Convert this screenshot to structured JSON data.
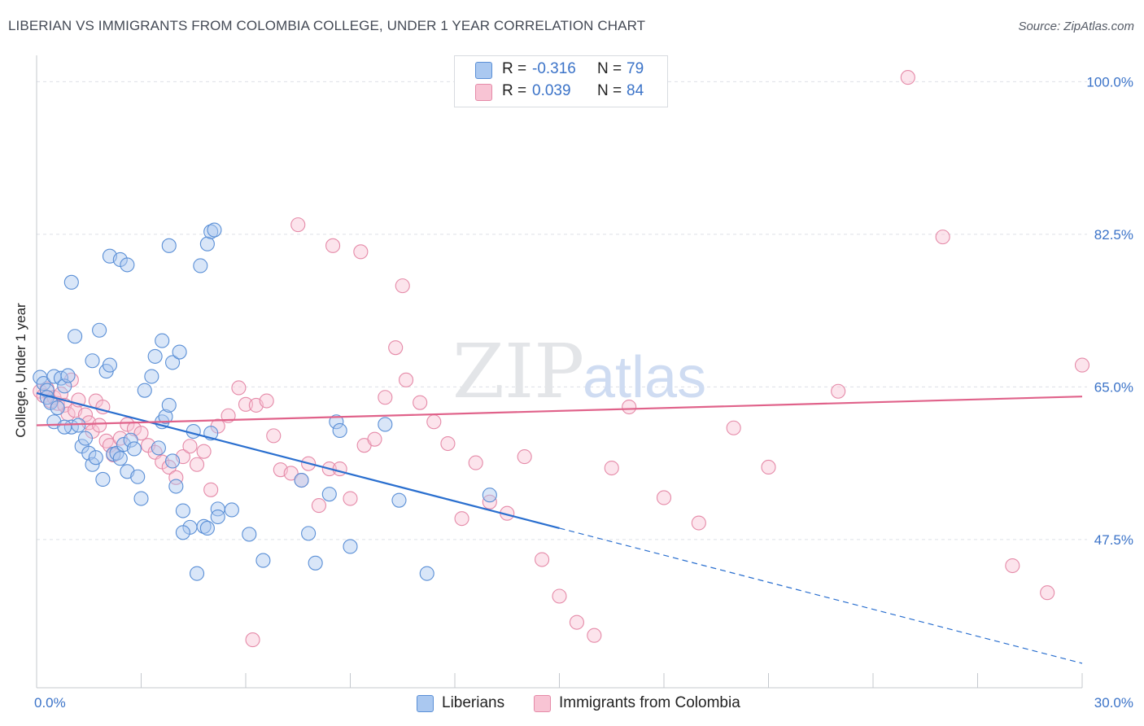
{
  "header": {
    "title": "LIBERIAN VS IMMIGRANTS FROM COLOMBIA COLLEGE, UNDER 1 YEAR CORRELATION CHART",
    "source": "Source: ZipAtlas.com"
  },
  "watermark": {
    "zip": "ZIP",
    "atlas": "atlas"
  },
  "colors": {
    "blue_fill": "#aac8f0",
    "blue_stroke": "#5a8fd6",
    "blue_line": "#2a6fcf",
    "pink_fill": "#f8c4d4",
    "pink_stroke": "#e58aa8",
    "pink_line": "#e0628a",
    "axis_text": "#3b73c8",
    "grid": "#dde0e6"
  },
  "legend_top": {
    "rows": [
      {
        "r_label": "R =",
        "r_value": "-0.316",
        "n_label": "N =",
        "n_value": "79"
      },
      {
        "r_label": "R =",
        "r_value": "0.039",
        "n_label": "N =",
        "n_value": "84"
      }
    ]
  },
  "legend_bottom": {
    "items": [
      {
        "label": "Liberians"
      },
      {
        "label": "Immigrants from Colombia"
      }
    ]
  },
  "chart_data": {
    "type": "scatter",
    "title": "LIBERIAN VS IMMIGRANTS FROM COLOMBIA COLLEGE, UNDER 1 YEAR CORRELATION CHART",
    "xlabel": "",
    "ylabel": "College, Under 1 year",
    "xlim": [
      0,
      30
    ],
    "ylim": [
      30.5,
      102
    ],
    "x_tick_labels": [
      "0.0%",
      "30.0%"
    ],
    "y_ticks": [
      47.5,
      65.0,
      82.5,
      100.0
    ],
    "y_tick_labels": [
      "47.5%",
      "65.0%",
      "82.5%",
      "100.0%"
    ],
    "grid": true,
    "series": [
      {
        "name": "Liberians",
        "color": "blue",
        "R": -0.316,
        "N": 79,
        "trend": {
          "x0": 0.0,
          "y0": 64.3,
          "x1": 15.0,
          "y1": 48.8,
          "dash_to_x": 30.0,
          "dash_to_y": 33.3
        },
        "points": [
          [
            0.1,
            66.1
          ],
          [
            0.2,
            65.4
          ],
          [
            0.3,
            64.6
          ],
          [
            0.3,
            63.8
          ],
          [
            0.4,
            63.2
          ],
          [
            0.5,
            66.2
          ],
          [
            0.6,
            62.6
          ],
          [
            0.7,
            66.0
          ],
          [
            0.8,
            65.1
          ],
          [
            0.9,
            66.3
          ],
          [
            1.0,
            60.4
          ],
          [
            1.1,
            70.8
          ],
          [
            1.2,
            60.6
          ],
          [
            1.3,
            58.2
          ],
          [
            1.4,
            59.1
          ],
          [
            1.5,
            57.4
          ],
          [
            1.6,
            56.1
          ],
          [
            1.7,
            56.9
          ],
          [
            1.8,
            71.5
          ],
          [
            1.9,
            54.4
          ],
          [
            2.0,
            66.8
          ],
          [
            2.1,
            67.5
          ],
          [
            2.2,
            57.3
          ],
          [
            2.3,
            57.4
          ],
          [
            2.4,
            56.8
          ],
          [
            2.5,
            58.4
          ],
          [
            2.6,
            55.3
          ],
          [
            2.7,
            58.9
          ],
          [
            2.8,
            57.9
          ],
          [
            2.9,
            54.7
          ],
          [
            3.0,
            52.2
          ],
          [
            3.1,
            64.6
          ],
          [
            3.3,
            66.2
          ],
          [
            3.4,
            68.5
          ],
          [
            3.5,
            58.0
          ],
          [
            3.6,
            61.0
          ],
          [
            3.7,
            61.6
          ],
          [
            3.8,
            62.9
          ],
          [
            3.9,
            56.5
          ],
          [
            4.0,
            53.6
          ],
          [
            4.2,
            50.8
          ],
          [
            4.4,
            48.9
          ],
          [
            4.6,
            43.6
          ],
          [
            4.8,
            49.0
          ],
          [
            5.0,
            59.7
          ],
          [
            5.2,
            51.0
          ],
          [
            0.5,
            61.0
          ],
          [
            0.8,
            60.4
          ],
          [
            1.0,
            77.0
          ],
          [
            1.6,
            68.0
          ],
          [
            2.1,
            80.0
          ],
          [
            2.4,
            79.6
          ],
          [
            2.6,
            79.0
          ],
          [
            3.8,
            81.2
          ],
          [
            4.7,
            78.9
          ],
          [
            4.9,
            81.4
          ],
          [
            5.0,
            82.8
          ],
          [
            5.1,
            83.0
          ],
          [
            3.6,
            70.3
          ],
          [
            3.9,
            67.8
          ],
          [
            4.1,
            69.0
          ],
          [
            4.5,
            59.9
          ],
          [
            4.9,
            48.8
          ],
          [
            5.2,
            50.1
          ],
          [
            5.6,
            50.9
          ],
          [
            6.1,
            48.1
          ],
          [
            6.5,
            45.1
          ],
          [
            7.6,
            54.3
          ],
          [
            7.8,
            48.2
          ],
          [
            8.0,
            44.8
          ],
          [
            8.4,
            52.7
          ],
          [
            8.6,
            61.0
          ],
          [
            8.7,
            60.0
          ],
          [
            9.0,
            46.7
          ],
          [
            10.0,
            60.7
          ],
          [
            10.4,
            52.0
          ],
          [
            11.2,
            43.6
          ],
          [
            13.0,
            52.6
          ],
          [
            4.2,
            48.3
          ]
        ]
      },
      {
        "name": "Immigrants from Colombia",
        "color": "pink",
        "R": 0.039,
        "N": 84,
        "trend": {
          "x0": 0.0,
          "y0": 60.6,
          "x1": 30.0,
          "y1": 63.9
        },
        "points": [
          [
            0.1,
            64.5
          ],
          [
            0.2,
            64.0
          ],
          [
            0.3,
            64.8
          ],
          [
            0.4,
            63.4
          ],
          [
            0.5,
            63.8
          ],
          [
            0.6,
            63.1
          ],
          [
            0.7,
            64.2
          ],
          [
            0.8,
            62.9
          ],
          [
            0.9,
            61.9
          ],
          [
            1.0,
            65.8
          ],
          [
            1.1,
            62.3
          ],
          [
            1.2,
            63.5
          ],
          [
            1.4,
            61.8
          ],
          [
            1.5,
            60.9
          ],
          [
            1.6,
            59.9
          ],
          [
            1.7,
            63.4
          ],
          [
            1.8,
            60.6
          ],
          [
            1.9,
            62.7
          ],
          [
            2.0,
            58.8
          ],
          [
            2.1,
            58.3
          ],
          [
            2.2,
            57.2
          ],
          [
            2.4,
            59.1
          ],
          [
            2.6,
            60.7
          ],
          [
            2.8,
            60.2
          ],
          [
            3.0,
            59.7
          ],
          [
            3.2,
            58.3
          ],
          [
            3.4,
            57.5
          ],
          [
            3.6,
            56.4
          ],
          [
            3.8,
            55.8
          ],
          [
            4.0,
            54.6
          ],
          [
            4.2,
            57.0
          ],
          [
            4.4,
            58.2
          ],
          [
            4.6,
            56.1
          ],
          [
            4.8,
            57.6
          ],
          [
            5.0,
            53.2
          ],
          [
            5.2,
            60.5
          ],
          [
            5.5,
            61.7
          ],
          [
            5.8,
            64.9
          ],
          [
            6.0,
            63.0
          ],
          [
            6.3,
            62.9
          ],
          [
            6.6,
            63.4
          ],
          [
            6.8,
            59.4
          ],
          [
            7.0,
            55.5
          ],
          [
            7.3,
            55.1
          ],
          [
            7.6,
            54.3
          ],
          [
            7.8,
            56.2
          ],
          [
            8.1,
            51.4
          ],
          [
            8.4,
            55.6
          ],
          [
            8.7,
            55.6
          ],
          [
            9.0,
            52.2
          ],
          [
            9.4,
            58.3
          ],
          [
            9.7,
            59.0
          ],
          [
            10.0,
            63.8
          ],
          [
            10.3,
            69.5
          ],
          [
            10.6,
            65.8
          ],
          [
            11.0,
            63.2
          ],
          [
            11.4,
            61.0
          ],
          [
            11.8,
            58.5
          ],
          [
            12.2,
            49.9
          ],
          [
            12.6,
            56.3
          ],
          [
            13.0,
            51.8
          ],
          [
            13.5,
            50.5
          ],
          [
            14.0,
            57.0
          ],
          [
            14.5,
            45.2
          ],
          [
            15.0,
            41.0
          ],
          [
            15.5,
            38.0
          ],
          [
            16.0,
            36.5
          ],
          [
            16.5,
            55.7
          ],
          [
            17.0,
            62.7
          ],
          [
            18.0,
            52.3
          ],
          [
            19.0,
            49.4
          ],
          [
            20.0,
            60.3
          ],
          [
            21.0,
            55.8
          ],
          [
            23.0,
            64.5
          ],
          [
            25.0,
            100.5
          ],
          [
            26.0,
            82.2
          ],
          [
            28.0,
            44.5
          ],
          [
            29.0,
            41.4
          ],
          [
            30.0,
            67.5
          ],
          [
            6.2,
            36.0
          ],
          [
            7.5,
            83.6
          ],
          [
            8.5,
            81.2
          ],
          [
            9.3,
            80.5
          ],
          [
            10.5,
            76.6
          ]
        ]
      }
    ]
  }
}
